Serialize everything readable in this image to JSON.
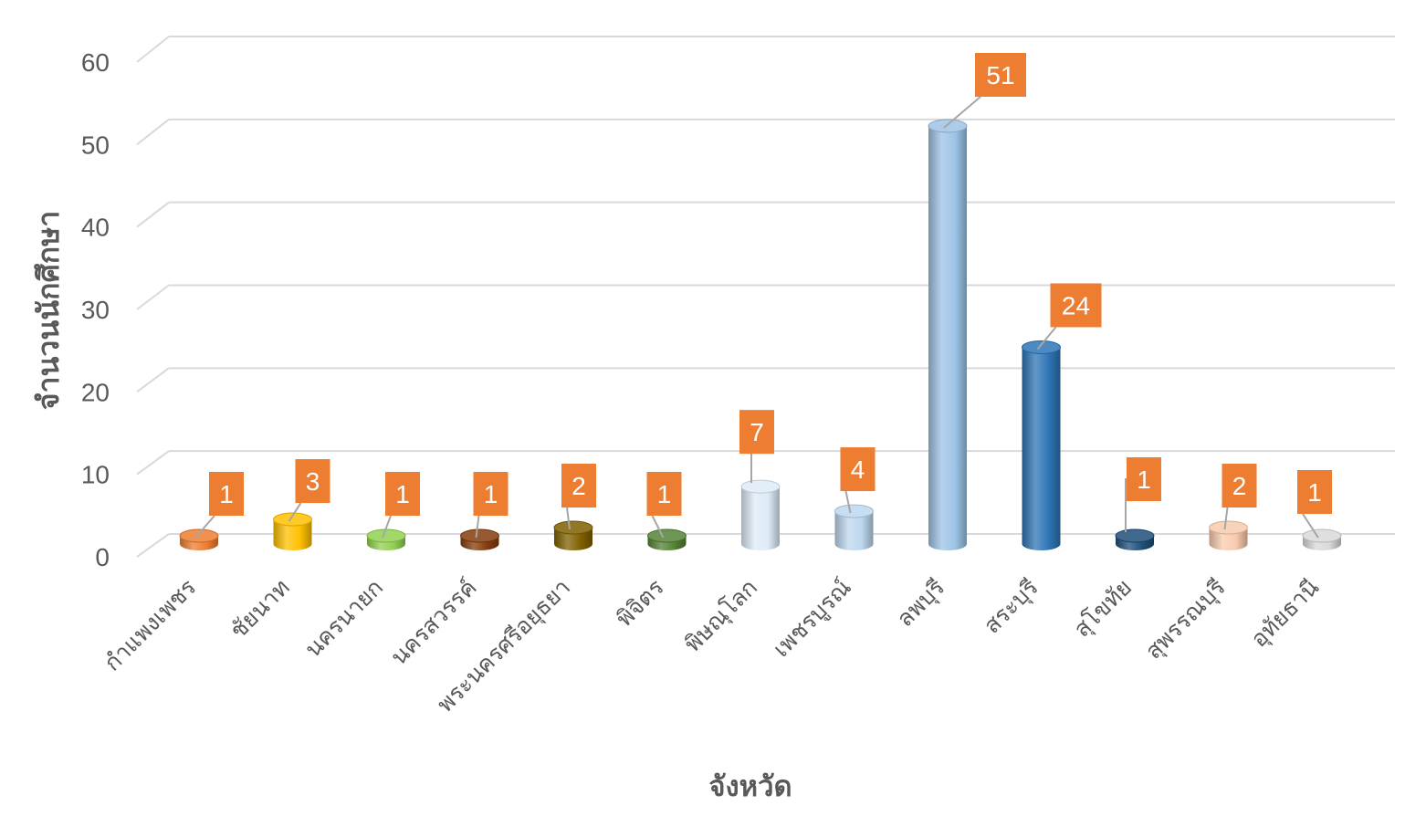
{
  "chart_data": {
    "type": "bar",
    "title": "",
    "xlabel": "จังหวัด",
    "ylabel": "จำนวนนักศึกษา",
    "ylim": [
      0,
      60
    ],
    "yticks": [
      "0",
      "10",
      "20",
      "30",
      "40",
      "50",
      "60"
    ],
    "grid": true,
    "categories": [
      "กำแพงเพชร",
      "ชัยนาท",
      "นครนายก",
      "นครสวรรค์",
      "พระนครศรีอยุธยา",
      "พิจิตร",
      "พิษณุโลก",
      "เพชรบูรณ์",
      "ลพบุรี",
      "สระบุรี",
      "สุโขทัย",
      "สุพรรณบุรี",
      "อุทัยธานี"
    ],
    "values": [
      1,
      3,
      1,
      1,
      2,
      1,
      7,
      4,
      51,
      24,
      1,
      2,
      1
    ],
    "data_labels": [
      "1",
      "3",
      "1",
      "1",
      "2",
      "1",
      "7",
      "4",
      "51",
      "24",
      "1",
      "2",
      "1"
    ],
    "colors": [
      "#ED7D31",
      "#FFC000",
      "#92D050",
      "#843C0C",
      "#7F6000",
      "#548235",
      "#DEEBF7",
      "#BDD7EE",
      "#9DC3E6",
      "#2E75B6",
      "#1F4E79",
      "#F8CBAD",
      "#D9D9D9"
    ],
    "label_color": "#ED7D31"
  }
}
